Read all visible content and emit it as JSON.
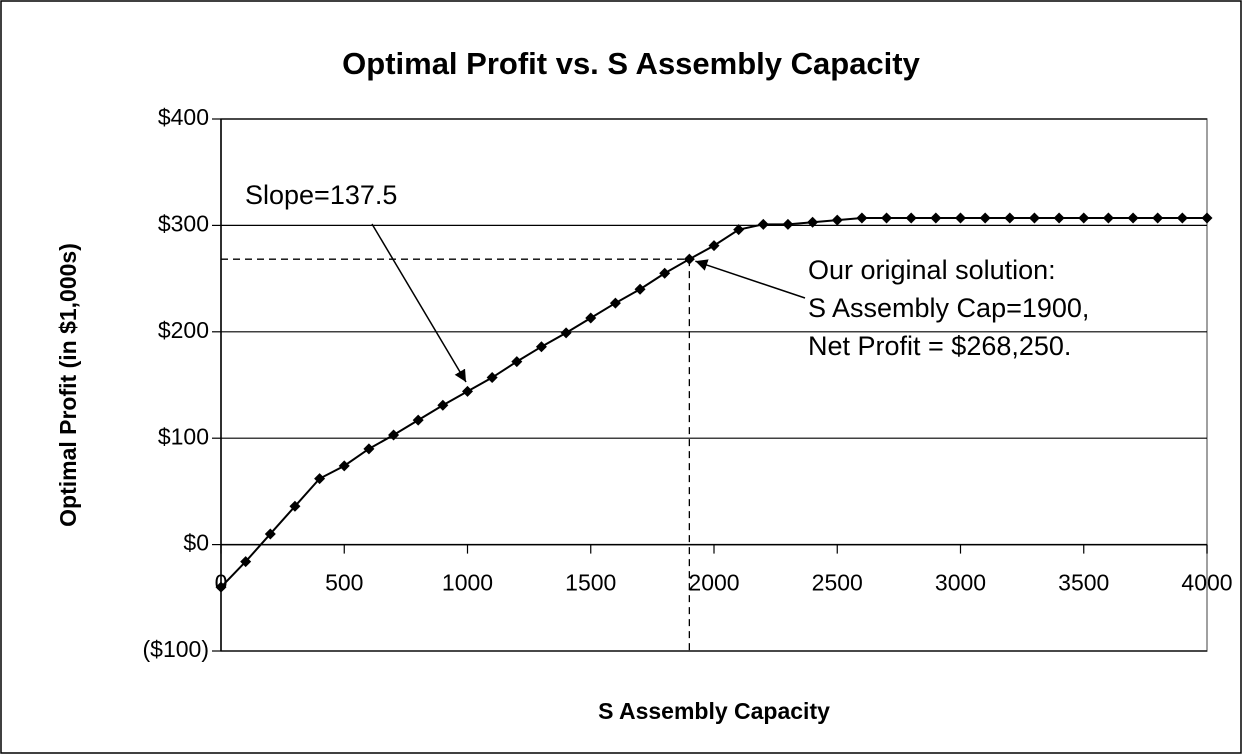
{
  "chart_data": {
    "type": "line",
    "title": "Optimal Profit vs. S Assembly Capacity",
    "x_label": "S Assembly Capacity",
    "y_label": "Optimal Profit (in $1,000s)",
    "x": [
      0,
      100,
      200,
      300,
      400,
      500,
      600,
      700,
      800,
      900,
      1000,
      1100,
      1200,
      1300,
      1400,
      1500,
      1600,
      1700,
      1800,
      1900,
      2000,
      2100,
      2200,
      2300,
      2400,
      2500,
      2600,
      2700,
      2800,
      2900,
      3000,
      3100,
      3200,
      3300,
      3400,
      3500,
      3600,
      3700,
      3800,
      3900,
      4000
    ],
    "series": [
      {
        "name": "Optimal Profit",
        "color": "#000000",
        "values": [
          -40,
          -16,
          10,
          36,
          62,
          74,
          90,
          103,
          117,
          131,
          144,
          157,
          172,
          186,
          199,
          213,
          227,
          240,
          255,
          268.25,
          281,
          296,
          301,
          301,
          303,
          305,
          307,
          307,
          307,
          307,
          307,
          307,
          307,
          307,
          307,
          307,
          307,
          307,
          307,
          307,
          307
        ]
      }
    ],
    "xlim": [
      0,
      4000
    ],
    "xticks": [
      0,
      500,
      1000,
      1500,
      2000,
      2500,
      3000,
      3500,
      4000
    ],
    "ylim": [
      -100,
      400
    ],
    "yticks": [
      {
        "value": -100,
        "label": "($100)"
      },
      {
        "value": 0,
        "label": "$0"
      },
      {
        "value": 100,
        "label": "$100"
      },
      {
        "value": 200,
        "label": "$200"
      },
      {
        "value": 300,
        "label": "$300"
      },
      {
        "value": 400,
        "label": "$400"
      }
    ],
    "grid": true,
    "annotations": [
      {
        "lines": [
          "Slope=137.5"
        ]
      },
      {
        "lines": [
          "Our original solution:",
          "S Assembly Cap=1900,",
          "Net Profit = $268,250."
        ]
      }
    ]
  }
}
